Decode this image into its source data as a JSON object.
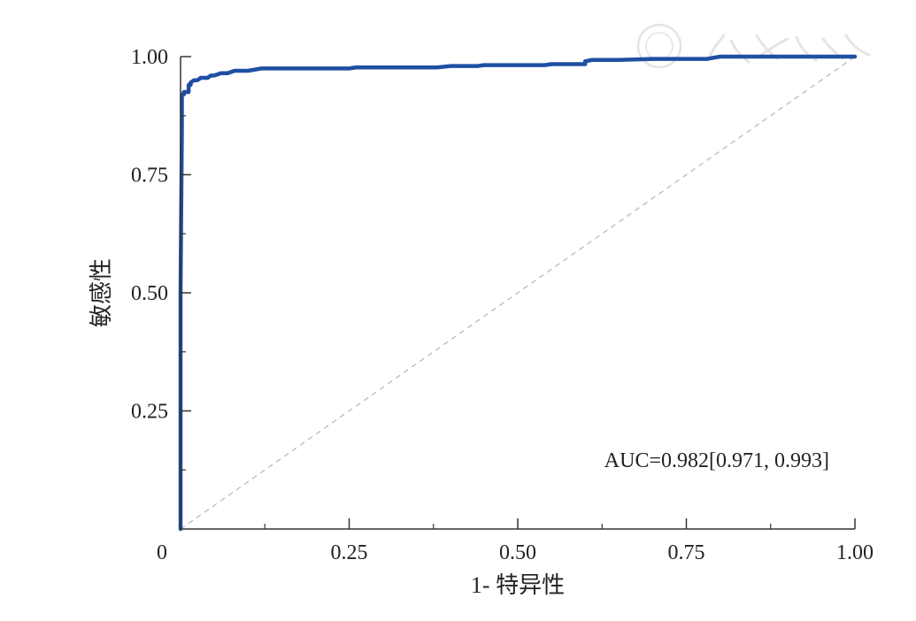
{
  "chart_data": {
    "type": "line",
    "xlabel": "1- 特异性",
    "ylabel": "敏感性",
    "xlim": [
      0,
      1
    ],
    "ylim": [
      0,
      1
    ],
    "x_ticks": [
      0,
      0.25,
      0.5,
      0.75,
      1.0
    ],
    "x_tick_labels": [
      "0",
      "0.25",
      "0.50",
      "0.75",
      "1.00"
    ],
    "y_ticks": [
      0.25,
      0.5,
      0.75,
      1.0
    ],
    "y_tick_labels": [
      "0.25",
      "0.50",
      "0.75",
      "1.00"
    ],
    "annotation": "AUC=0.982[0.971, 0.993]",
    "grid": false,
    "colors": {
      "roc": "#1f4fa3",
      "reference": "#b5b5b5",
      "axis": "#333333"
    },
    "series": [
      {
        "x": [
          0,
          0,
          0.002,
          0.002,
          0.005,
          0.005,
          0.012,
          0.012,
          0.015,
          0.015,
          0.02,
          0.025,
          0.03,
          0.04,
          0.045,
          0.05,
          0.06,
          0.07,
          0.08,
          0.1,
          0.12,
          0.15,
          0.2,
          0.25,
          0.26,
          0.3,
          0.38,
          0.4,
          0.44,
          0.45,
          0.5,
          0.54,
          0.55,
          0.6,
          0.6,
          0.61,
          0.65,
          0.7,
          0.75,
          0.78,
          0.8,
          0.9,
          1.0
        ],
        "y": [
          0,
          0.5,
          0.85,
          0.92,
          0.92,
          0.925,
          0.925,
          0.94,
          0.94,
          0.945,
          0.95,
          0.95,
          0.955,
          0.955,
          0.96,
          0.96,
          0.965,
          0.965,
          0.97,
          0.97,
          0.975,
          0.975,
          0.975,
          0.975,
          0.977,
          0.977,
          0.977,
          0.98,
          0.98,
          0.982,
          0.982,
          0.982,
          0.984,
          0.984,
          0.99,
          0.993,
          0.993,
          0.995,
          0.995,
          0.995,
          1.0,
          1.0,
          1.0
        ]
      },
      {
        "x": [
          0,
          1
        ],
        "y": [
          0,
          1
        ],
        "style": "dashed"
      }
    ]
  }
}
